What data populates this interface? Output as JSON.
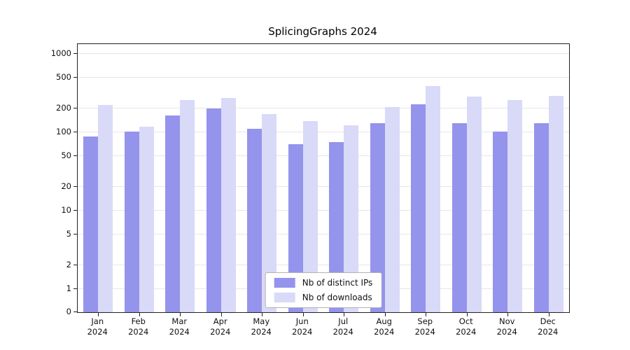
{
  "chart_data": {
    "type": "bar",
    "title": "SplicingGraphs 2024",
    "yscale": "log",
    "grid": true,
    "legend_position": "bottom-center",
    "y_ticks": [
      0,
      1,
      2,
      5,
      10,
      20,
      50,
      100,
      200,
      500,
      1000
    ],
    "ylim": [
      0,
      1000
    ],
    "categories": [
      "Jan",
      "Feb",
      "Mar",
      "Apr",
      "May",
      "Jun",
      "Jul",
      "Aug",
      "Sep",
      "Oct",
      "Nov",
      "Dec"
    ],
    "year_label": "2024",
    "series": [
      {
        "name": "Nb of distinct IPs",
        "color": "#9494ec",
        "values": [
          88,
          103,
          165,
          203,
          110,
          70,
          75,
          130,
          230,
          130,
          103,
          130
        ]
      },
      {
        "name": "Nb of downloads",
        "color": "#d9d9f8",
        "values": [
          225,
          118,
          260,
          275,
          170,
          140,
          123,
          210,
          390,
          285,
          255,
          290
        ]
      }
    ]
  }
}
